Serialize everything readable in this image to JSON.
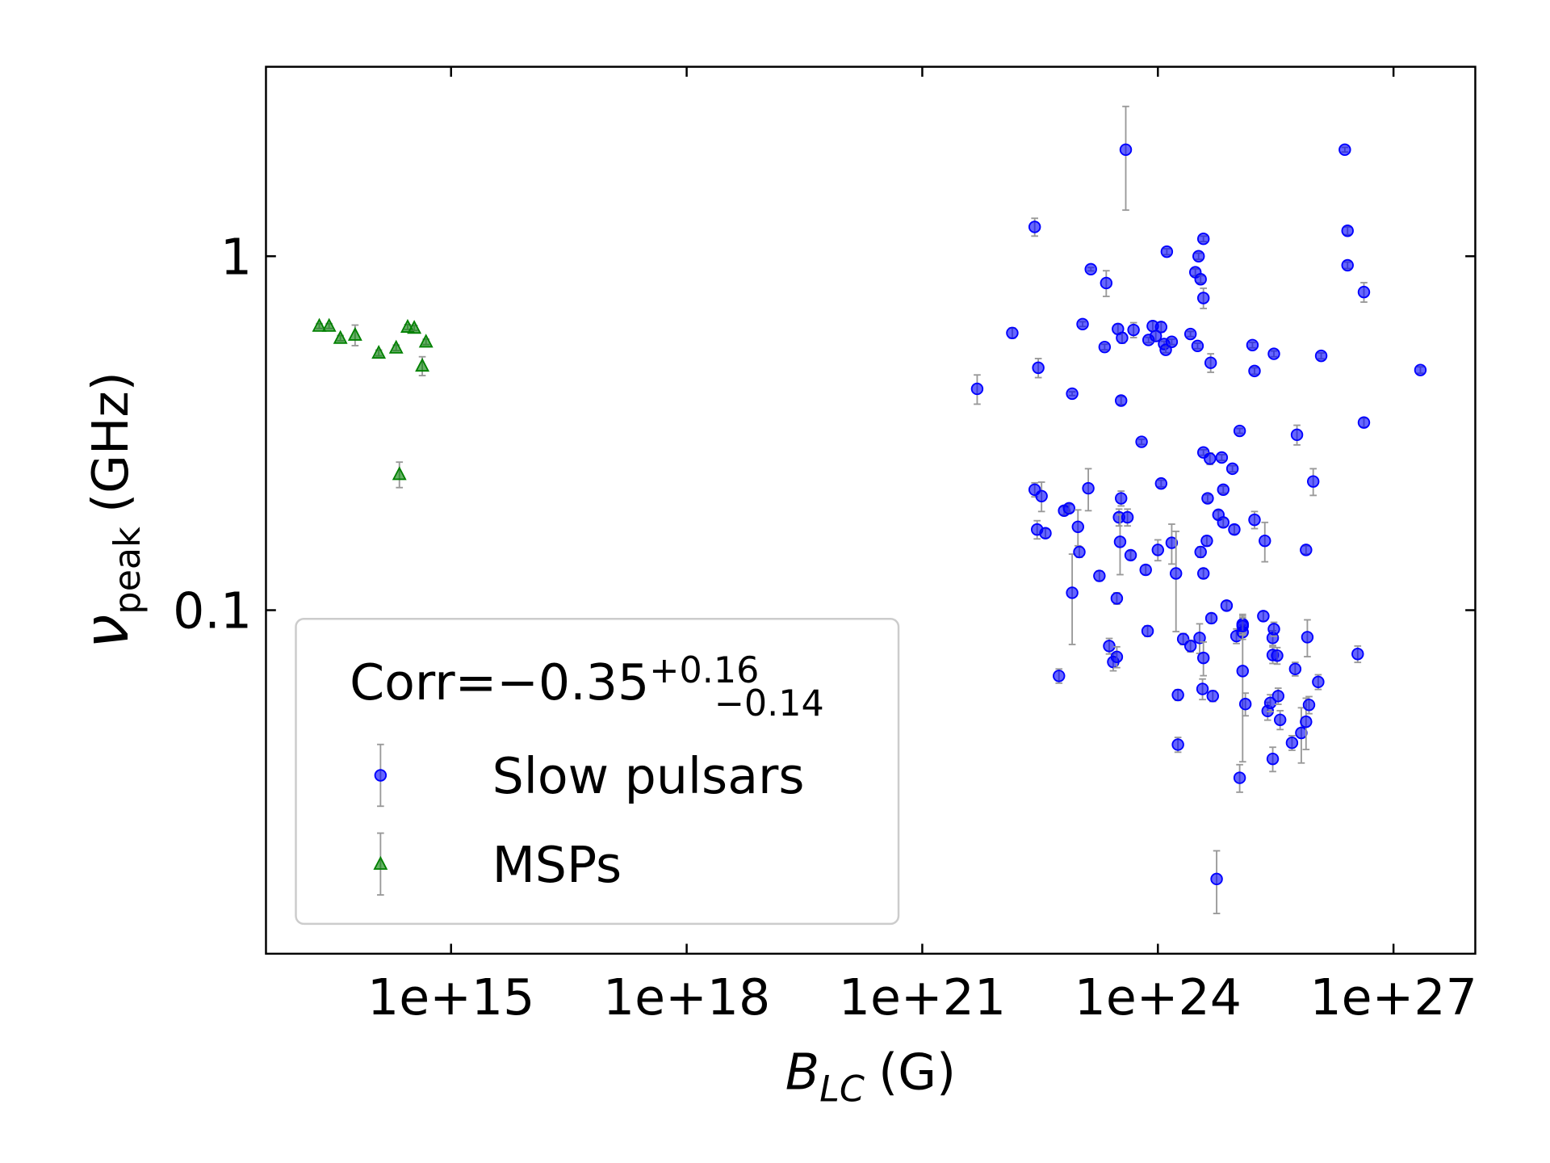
{
  "chart_data": {
    "type": "scatter",
    "xlabel": {
      "symbol": "B",
      "subscript": "LC",
      "unit": "(G)"
    },
    "ylabel": {
      "symbol": "ν",
      "subscript": "peak",
      "unit": "(GHz)"
    },
    "xscale": "log",
    "yscale": "log",
    "xlim": [
      4400000000000.0,
      1.1e+28
    ],
    "ylim": [
      0.0107,
      3.43
    ],
    "xticks": [
      {
        "value": 1000000000000000.0,
        "label": "1e+15"
      },
      {
        "value": 1e+18,
        "label": "1e+18"
      },
      {
        "value": 1e+21,
        "label": "1e+21"
      },
      {
        "value": 1e+24,
        "label": "1e+24"
      },
      {
        "value": 1e+27,
        "label": "1e+27"
      }
    ],
    "yticks": [
      0.1,
      1
    ],
    "grid": false,
    "legend": "lower left",
    "legend_title": {
      "text": "Corr=−0.35",
      "sup": "+0.16",
      "sub": "−0.14"
    },
    "errorbar_color": "#999999",
    "series": [
      {
        "name": "Slow pulsars",
        "color": "#0000ff",
        "marker": "circle",
        "x": [
          5e+21,
          1.4e+22,
          2.7e+22,
          3e+22,
          2.7e+22,
          3.3e+22,
          2.9e+22,
          3.7e+22,
          5.5e+22,
          6.4e+22,
          7.4e+22,
          8.1e+22,
          8.1e+22,
          9.6e+22,
          1e+23,
          1.1e+23,
          1.3e+23,
          1.4e+23,
          1.8e+23,
          2.1e+23,
          2.2e+23,
          2.4e+23,
          2.7e+23,
          3e+23,
          3.1e+23,
          3e+23,
          3.2e+23,
          3.3e+23,
          3.4e+23,
          3.5e+23,
          3.4e+23,
          3.9e+23,
          4.1e+23,
          4.5e+23,
          4.9e+23,
          6.2e+23,
          7e+23,
          7.4e+23,
          7.6e+23,
          8.6e+23,
          9.4e+23,
          1e+24,
          1.1e+24,
          1.1e+24,
          1.2e+24,
          1.3e+24,
          1.26e+24,
          1.5e+24,
          1.5e+24,
          1.7e+24,
          1.8e+24,
          1.8e+24,
          2.1e+24,
          2.6e+24,
          2.6e+24,
          3e+24,
          3.2e+24,
          3.3e+24,
          3.4e+24,
          3.5e+24,
          3.5e+24,
          3.7e+24,
          3.8e+24,
          3.8e+24,
          3.8e+24,
          3.8e+24,
          3.8e+24,
          4.2e+24,
          4.3e+24,
          4.7e+24,
          4.8e+24,
          5e+24,
          4.6e+24,
          5.6e+24,
          5.9e+24,
          6.5e+24,
          6.8e+24,
          6.8e+24,
          7.5e+24,
          8.9e+24,
          9.4e+24,
          1e+25,
          1.1e+25,
          1.1e+25,
          1.2e+25,
          1.2e+25,
          1.2e+25,
          1.2e+25,
          1.3e+25,
          1.6e+25,
          1.7e+25,
          1.7e+25,
          2.2e+25,
          2.3e+25,
          2.5e+25,
          2.7e+25,
          2.9e+25,
          2.9e+25,
          3e+25,
          3e+25,
          2.9e+25,
          3.3e+25,
          3.4e+25,
          3.6e+25,
          5.1e+25,
          5.6e+25,
          5.9e+25,
          6.7e+25,
          7.7e+25,
          7.7e+25,
          8e+25,
          8.4e+25,
          9.5e+25,
          1.1e+26,
          1.2e+26,
          2.4e+26,
          2.6e+26,
          2.6e+26,
          3.5e+26,
          4.2e+26,
          4.2e+26,
          2.2e+27
        ],
        "values": [
          0.422,
          0.607,
          1.21,
          0.484,
          0.219,
          0.21,
          0.169,
          0.165,
          0.0652,
          0.191,
          0.194,
          0.409,
          0.112,
          0.172,
          0.146,
          0.643,
          0.221,
          0.919,
          0.125,
          0.554,
          0.84,
          0.0792,
          0.0714,
          0.0738,
          0.623,
          0.108,
          0.183,
          0.156,
          0.391,
          0.588,
          0.207,
          2.0,
          0.183,
          0.143,
          0.619,
          0.299,
          0.13,
          0.0873,
          0.58,
          0.635,
          0.595,
          0.148,
          0.228,
          0.631,
          0.565,
          1.03,
          0.544,
          0.573,
          0.155,
          0.127,
          0.0576,
          0.0417,
          0.0829,
          0.603,
          0.0792,
          0.901,
          0.558,
          1.0,
          0.0835,
          0.861,
          0.146,
          0.0599,
          1.12,
          0.762,
          0.127,
          0.0733,
          0.279,
          0.157,
          0.207,
          0.5,
          0.0949,
          0.0572,
          0.268,
          0.0174,
          0.186,
          0.27,
          0.177,
          0.219,
          0.103,
          0.251,
          0.169,
          0.0845,
          0.321,
          0.0336,
          0.0867,
          0.0913,
          0.0673,
          0.0902,
          0.0543,
          0.561,
          0.18,
          0.474,
          0.0962,
          0.157,
          0.0519,
          0.0547,
          0.0747,
          0.0835,
          0.0884,
          0.53,
          0.038,
          0.0744,
          0.0572,
          0.049,
          0.0422,
          0.0682,
          0.313,
          0.045,
          0.148,
          0.0484,
          0.0839,
          0.054,
          0.231,
          0.0627,
          0.523,
          2.0,
          1.18,
          0.943,
          0.0752,
          0.792,
          0.339,
          0.477
        ],
        "errors": [
          0.04,
          0.02,
          0.07,
          0.03,
          0.01,
          0.02,
          0.01,
          0.005,
          0.003,
          0.005,
          0.005,
          0.005,
          0.032,
          0.02,
          0.005,
          0.01,
          0.03,
          0.01,
          0.004,
          0.01,
          0.07,
          0.004,
          0.004,
          0.005,
          0.02,
          0.004,
          0.01,
          0.03,
          0.01,
          0.02,
          0.01,
          0.65,
          0.01,
          0.004,
          0.03,
          0.005,
          0.004,
          0.003,
          0.01,
          0.02,
          0.02,
          0.01,
          0.005,
          0.02,
          0.01,
          0.02,
          0.01,
          0.01,
          0.02,
          0.04,
          0.002,
          0.002,
          0.003,
          0.01,
          0.003,
          0.02,
          0.01,
          0.02,
          0.008,
          0.02,
          0.005,
          0.004,
          0.02,
          0.05,
          0.004,
          0.008,
          0.005,
          0.005,
          0.005,
          0.03,
          0.003,
          0.002,
          0.01,
          0.0035,
          0.005,
          0.005,
          0.005,
          0.005,
          0.003,
          0.005,
          0.005,
          0.004,
          0.005,
          0.003,
          0.004,
          0.005,
          0.03,
          0.005,
          0.004,
          0.01,
          0.01,
          0.01,
          0.003,
          0.02,
          0.003,
          0.003,
          0.004,
          0.004,
          0.004,
          0.01,
          0.003,
          0.004,
          0.003,
          0.003,
          0.002,
          0.003,
          0.02,
          0.008,
          0.004,
          0.008,
          0.01,
          0.003,
          0.02,
          0.003,
          0.01,
          0.03,
          0.03,
          0.02,
          0.004,
          0.05,
          0.01,
          0.01
        ]
      },
      {
        "name": "MSPs",
        "color": "#008000",
        "marker": "triangle",
        "x": [
          21000000000000.0,
          28000000000000.0,
          39000000000000.0,
          60000000000000.0,
          120000000000000.0,
          200000000000000.0,
          280000000000000.0,
          340000000000000.0,
          480000000000000.0,
          430000000000000.0,
          220000000000000.0
        ],
        "values": [
          0.635,
          0.635,
          0.587,
          0.599,
          0.533,
          0.551,
          0.631,
          0.627,
          0.573,
          0.49,
          0.242
        ],
        "errors": [
          0.01,
          0.01,
          0.01,
          0.04,
          0.01,
          0.01,
          0.01,
          0.01,
          0.01,
          0.03,
          0.02
        ]
      }
    ]
  }
}
